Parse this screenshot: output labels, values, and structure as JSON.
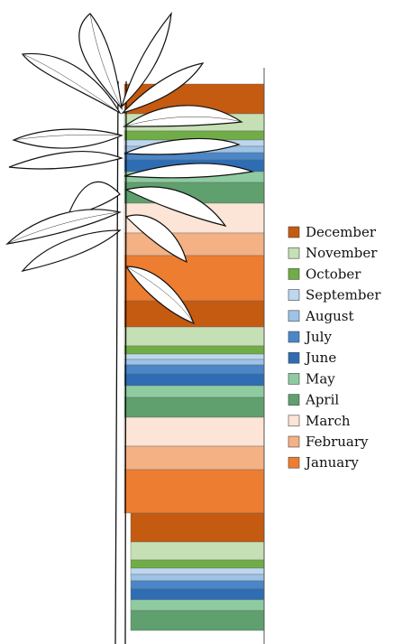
{
  "legend": {
    "items": [
      {
        "label": "December",
        "color": "#c55a11"
      },
      {
        "label": "November",
        "color": "#c5e0b4"
      },
      {
        "label": "October",
        "color": "#70ad47"
      },
      {
        "label": "September",
        "color": "#bdd7ee"
      },
      {
        "label": "August",
        "color": "#9dc3e6"
      },
      {
        "label": "July",
        "color": "#4a86c8"
      },
      {
        "label": "June",
        "color": "#2e6db4"
      },
      {
        "label": "May",
        "color": "#8fcba0"
      },
      {
        "label": "April",
        "color": "#5fa06e"
      },
      {
        "label": "March",
        "color": "#fce4d6"
      },
      {
        "label": "February",
        "color": "#f4b183"
      },
      {
        "label": "January",
        "color": "#ed7d31"
      }
    ]
  }
}
